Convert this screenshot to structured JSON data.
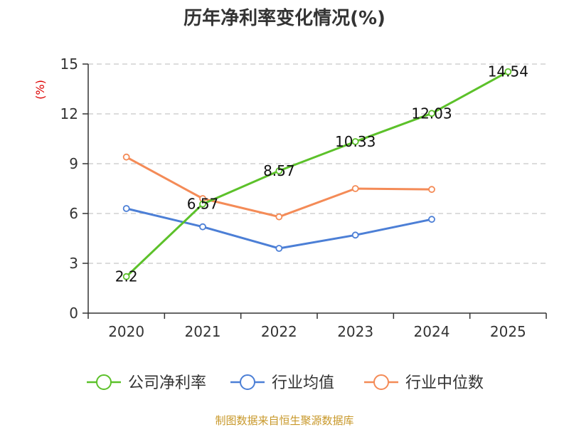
{
  "chart_data": {
    "type": "line",
    "title": "历年净利率变化情况(%)",
    "ylabel": "(%)",
    "xlabel": "",
    "categories": [
      "2020",
      "2021",
      "2022",
      "2023",
      "2024",
      "2025"
    ],
    "ylim": [
      0,
      15
    ],
    "yticks": [
      "0",
      "3",
      "6",
      "9",
      "12",
      "15"
    ],
    "grid": true,
    "legend_position": "bottom",
    "series": [
      {
        "name": "公司净利率",
        "color": "#5cc12a",
        "values": [
          2.2,
          6.57,
          8.57,
          10.33,
          12.03,
          14.54
        ],
        "labels": [
          "2.2",
          "6.57",
          "8.57",
          "10.33",
          "12.03",
          "14.54"
        ]
      },
      {
        "name": "行业均值",
        "color": "#4c7fd6",
        "values": [
          6.3,
          5.2,
          3.9,
          4.7,
          5.65,
          null
        ]
      },
      {
        "name": "行业中位数",
        "color": "#f48b57",
        "values": [
          9.4,
          6.9,
          5.8,
          7.5,
          7.45,
          null
        ]
      }
    ],
    "source": "制图数据来自恒生聚源数据库"
  }
}
